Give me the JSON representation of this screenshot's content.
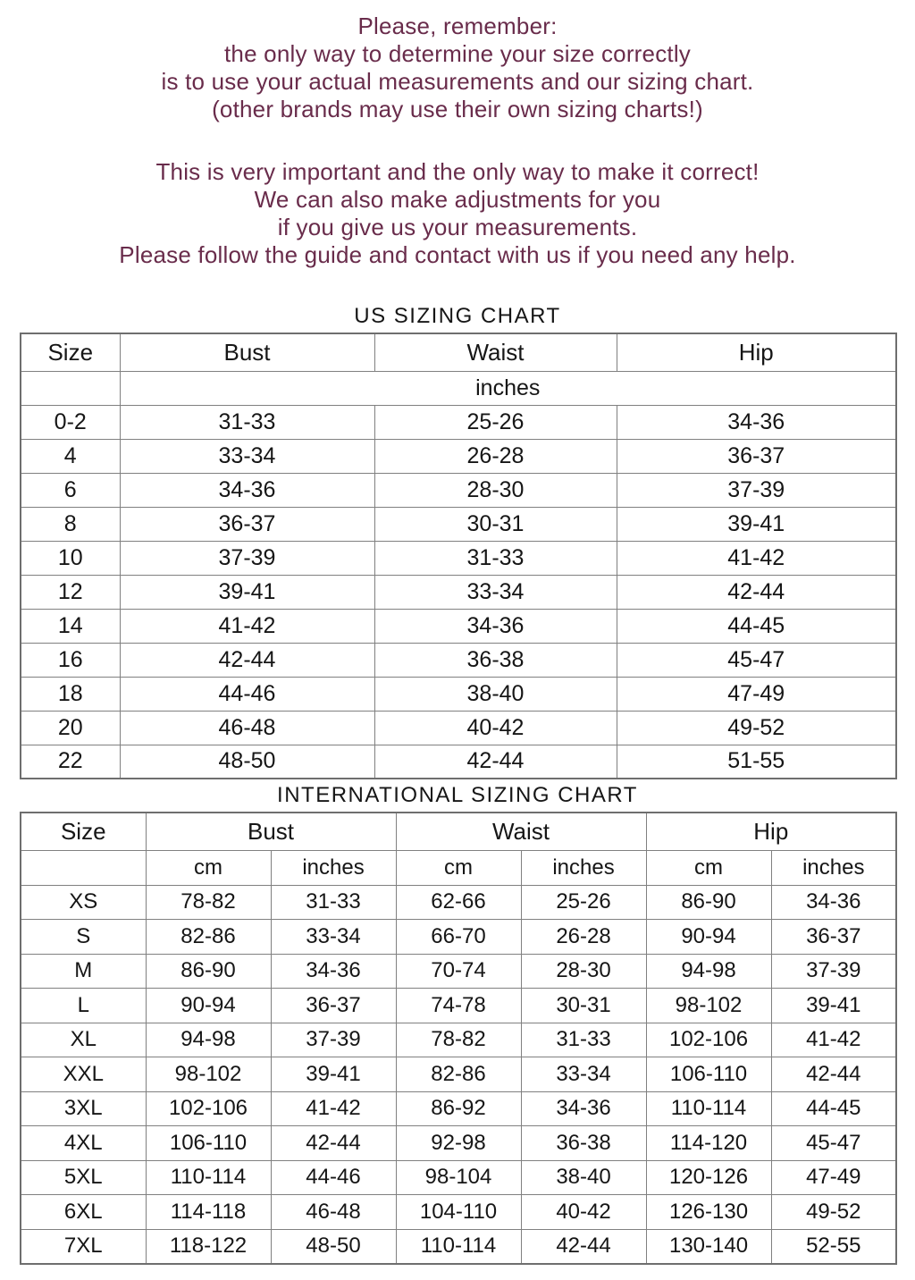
{
  "page": {
    "background_color": "#ffffff",
    "accent_text_color": "#692c4b",
    "table_text_color": "#161616",
    "table_border_color": "#808080"
  },
  "intro": {
    "paragraph1": [
      "Please, remember:",
      "the only way to determine your size correctly",
      "is to use your actual measurements and our sizing chart.",
      "(other brands may use their own sizing charts!)"
    ],
    "paragraph2": [
      "This is very important and the only way to make it correct!",
      "We can also make adjustments for you",
      "if you give us your measurements.",
      "Please follow the guide and contact with us if you need any help."
    ]
  },
  "us_chart": {
    "title": "US SIZING CHART",
    "columns": [
      "Size",
      "Bust",
      "Waist",
      "Hip"
    ],
    "unit_label": "inches",
    "rows": [
      [
        "0-2",
        "31-33",
        "25-26",
        "34-36"
      ],
      [
        "4",
        "33-34",
        "26-28",
        "36-37"
      ],
      [
        "6",
        "34-36",
        "28-30",
        "37-39"
      ],
      [
        "8",
        "36-37",
        "30-31",
        "39-41"
      ],
      [
        "10",
        "37-39",
        "31-33",
        "41-42"
      ],
      [
        "12",
        "39-41",
        "33-34",
        "42-44"
      ],
      [
        "14",
        "41-42",
        "34-36",
        "44-45"
      ],
      [
        "16",
        "42-44",
        "36-38",
        "45-47"
      ],
      [
        "18",
        "44-46",
        "38-40",
        "47-49"
      ],
      [
        "20",
        "46-48",
        "40-42",
        "49-52"
      ],
      [
        "22",
        "48-50",
        "42-44",
        "51-55"
      ]
    ]
  },
  "intl_chart": {
    "title": "INTERNATIONAL SIZING CHART",
    "columns": [
      "Size",
      "Bust",
      "Waist",
      "Hip"
    ],
    "unit_columns": [
      "cm",
      "inches",
      "cm",
      "inches",
      "cm",
      "inches"
    ],
    "rows": [
      [
        "XS",
        "78-82",
        "31-33",
        "62-66",
        "25-26",
        "86-90",
        "34-36"
      ],
      [
        "S",
        "82-86",
        "33-34",
        "66-70",
        "26-28",
        "90-94",
        "36-37"
      ],
      [
        "M",
        "86-90",
        "34-36",
        "70-74",
        "28-30",
        "94-98",
        "37-39"
      ],
      [
        "L",
        "90-94",
        "36-37",
        "74-78",
        "30-31",
        "98-102",
        "39-41"
      ],
      [
        "XL",
        "94-98",
        "37-39",
        "78-82",
        "31-33",
        "102-106",
        "41-42"
      ],
      [
        "XXL",
        "98-102",
        "39-41",
        "82-86",
        "33-34",
        "106-110",
        "42-44"
      ],
      [
        "3XL",
        "102-106",
        "41-42",
        "86-92",
        "34-36",
        "110-114",
        "44-45"
      ],
      [
        "4XL",
        "106-110",
        "42-44",
        "92-98",
        "36-38",
        "114-120",
        "45-47"
      ],
      [
        "5XL",
        "110-114",
        "44-46",
        "98-104",
        "38-40",
        "120-126",
        "47-49"
      ],
      [
        "6XL",
        "114-118",
        "46-48",
        "104-110",
        "40-42",
        "126-130",
        "49-52"
      ],
      [
        "7XL",
        "118-122",
        "48-50",
        "110-114",
        "42-44",
        "130-140",
        "52-55"
      ]
    ]
  }
}
